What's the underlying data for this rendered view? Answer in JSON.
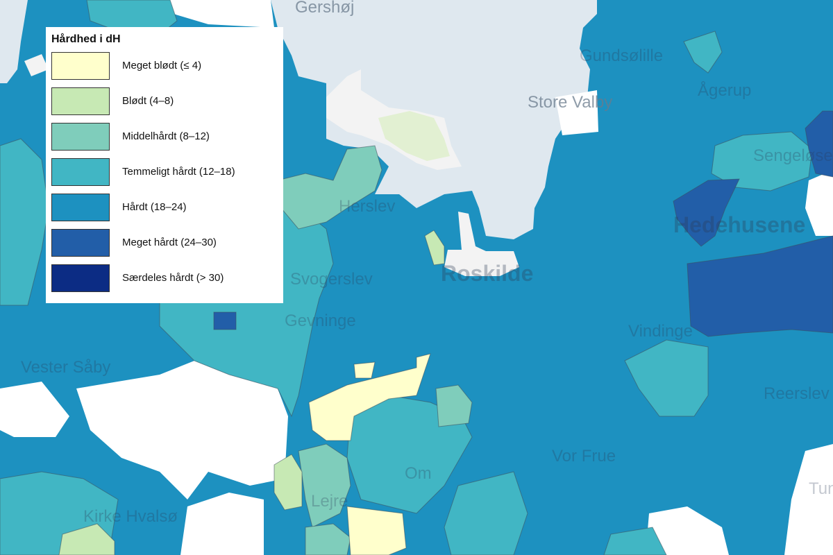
{
  "legend": {
    "title": "Hårdhed i dH",
    "items": [
      {
        "key": "meget-bloedt",
        "label": "Meget blødt (≤ 4)",
        "color": "#ffffcc"
      },
      {
        "key": "bloedt",
        "label": "Blødt (4–8)",
        "color": "#c7e9b4"
      },
      {
        "key": "middelhaardt",
        "label": "Middelhårdt (8–12)",
        "color": "#7fcdbb"
      },
      {
        "key": "temmeligt-haardt",
        "label": "Temmeligt hårdt (12–18)",
        "color": "#41b6c4"
      },
      {
        "key": "haardt",
        "label": "Hårdt (18–24)",
        "color": "#1d91c0"
      },
      {
        "key": "meget-haardt",
        "label": "Meget hårdt (24–30)",
        "color": "#225ea8"
      },
      {
        "key": "saerdeles-haardt",
        "label": "Særdeles hårdt (> 30)",
        "color": "#0c2c84"
      }
    ]
  },
  "colors": {
    "water": "#dfe8ef",
    "island": "#f3f3f3",
    "no_data": "#ffffff",
    "forest": "#e2f0d2"
  },
  "place_labels": {
    "gershoj": "Gershøj",
    "gundsolille": "Gundsølille",
    "store_valby": "Store Valby",
    "agerup": "Ågerup",
    "sengelose": "Sengeløse",
    "hedehusene": "Hedehusene",
    "roskilde": "Roskilde",
    "svogerslev": "Svogerslev",
    "gevninge": "Gevninge",
    "herslev": "Herslev",
    "vindinge": "Vindinge",
    "vester_saaby": "Vester Såby",
    "kirke_hvalso": "Kirke Hvalsø",
    "vor_frue": "Vor Frue",
    "om": "Om",
    "lejre": "Lejre",
    "reerslev": "Reerslev",
    "tune": "Tune"
  }
}
